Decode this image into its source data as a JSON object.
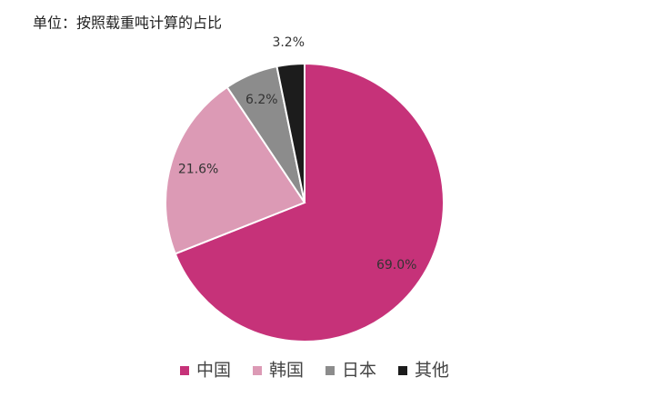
{
  "chart_data": {
    "type": "pie",
    "title": "单位：按照载重吨计算的占比",
    "categories": [
      "中国",
      "韩国",
      "日本",
      "其他"
    ],
    "values": [
      69.0,
      21.6,
      6.2,
      3.2
    ],
    "value_labels": [
      "69.0%",
      "21.6%",
      "6.2%",
      "3.2%"
    ],
    "colors": [
      "#c63279",
      "#dc9ab5",
      "#8c8c8c",
      "#1c1c1c"
    ],
    "legend": "bottom"
  }
}
